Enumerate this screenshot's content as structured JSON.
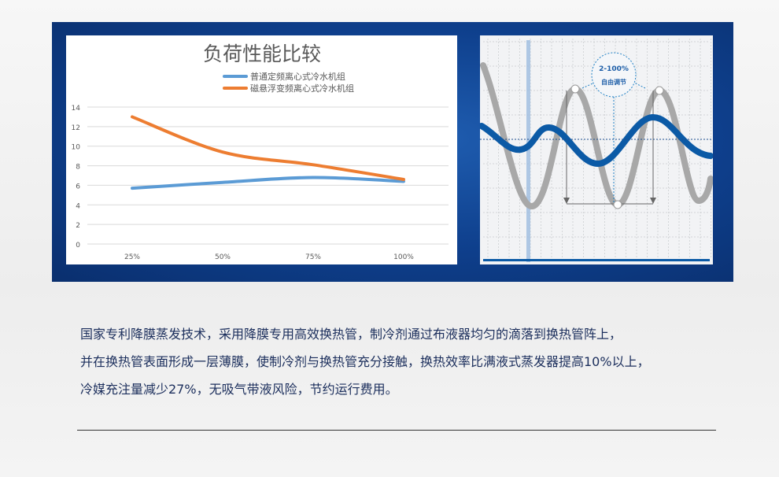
{
  "chart_data": {
    "type": "line",
    "title": "负荷性能比较",
    "categories": [
      "25%",
      "50%",
      "75%",
      "100%"
    ],
    "series": [
      {
        "name": "普通定频离心式冷水机组",
        "values": [
          5.7,
          6.3,
          6.8,
          6.4
        ],
        "color": "#5b9bd5"
      },
      {
        "name": "磁悬浮变频离心式冷水机组",
        "values": [
          13.0,
          9.4,
          8.1,
          6.6
        ],
        "color": "#ed7d31"
      }
    ],
    "yticks": [
      0,
      2,
      4,
      6,
      8,
      10,
      12,
      14
    ],
    "ylim": [
      0,
      14
    ],
    "grid": true,
    "legend": "top-right"
  },
  "wave_graphic": {
    "range_label": "2-100%",
    "adjust_label": "自由调节",
    "colors": {
      "wave_primary": "#0b5aa6",
      "wave_secondary": "#a9a9a9"
    }
  },
  "description": {
    "lines": [
      "国家专利降膜蒸发技术，采用降膜专用高效换热管，制冷剂通过布液器均匀的滴落到换热管阵上，",
      "并在换热管表面形成一层薄膜，使制冷剂与换热管充分接触，换热效率比满液式蒸发器提高10%以上，",
      "冷媒充注量减少27%，无吸气带液风险，节约运行费用。"
    ]
  },
  "colors": {
    "panel": "#0e3f8c",
    "text": "#1b2e5c"
  }
}
